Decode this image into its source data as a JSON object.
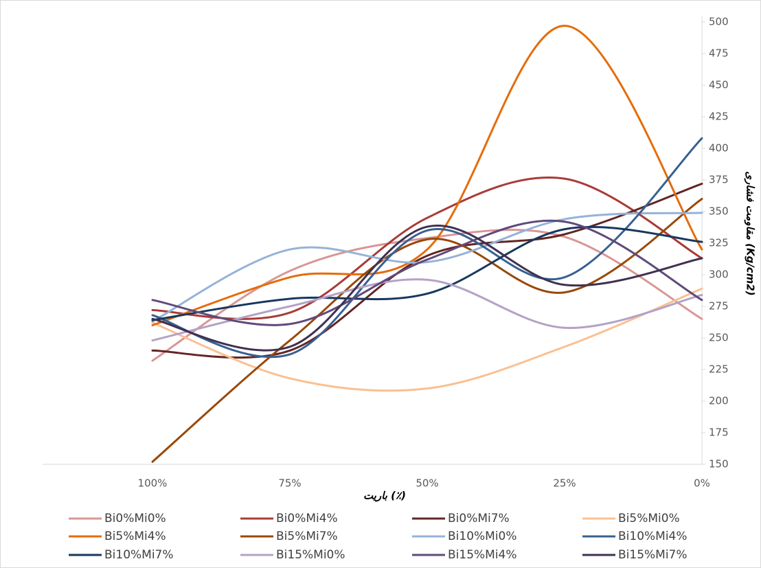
{
  "chart_data": {
    "type": "line",
    "x_label": "باریت (٪)",
    "y_label": "مقاومت فشاری (Kg/cm2)",
    "categories": [
      "100%",
      "75%",
      "50%",
      "25%",
      "0%"
    ],
    "ylim": [
      150,
      500
    ],
    "yticks": [
      150,
      175,
      200,
      225,
      250,
      275,
      300,
      325,
      350,
      375,
      400,
      425,
      450,
      475,
      500
    ],
    "smooth": true,
    "legend": "bottom",
    "series": [
      {
        "name": "Bi0%Mi0%",
        "color": "#d99694",
        "values": [
          232,
          303,
          329,
          330,
          265
        ]
      },
      {
        "name": "Bi0%Mi4%",
        "color": "#a93b37",
        "values": [
          272,
          270,
          345,
          376,
          313
        ]
      },
      {
        "name": "Bi0%Mi7%",
        "color": "#632523",
        "values": [
          240,
          240,
          315,
          332,
          372
        ]
      },
      {
        "name": "Bi5%Mi0%",
        "color": "#fac090",
        "values": [
          262,
          218,
          210,
          243,
          289
        ]
      },
      {
        "name": "Bi5%Mi4%",
        "color": "#e46c0a",
        "values": [
          260,
          298,
          320,
          497,
          320
        ]
      },
      {
        "name": "Bi5%Mi7%",
        "color": "#984807",
        "values": [
          152,
          248,
          328,
          286,
          360
        ]
      },
      {
        "name": "Bi10%Mi0%",
        "color": "#95b3d7",
        "values": [
          263,
          320,
          310,
          344,
          349
        ]
      },
      {
        "name": "Bi10%Mi4%",
        "color": "#376092",
        "values": [
          268,
          237,
          335,
          298,
          408
        ]
      },
      {
        "name": "Bi10%Mi7%",
        "color": "#17375e",
        "values": [
          264,
          281,
          285,
          336,
          326
        ]
      },
      {
        "name": "Bi15%Mi0%",
        "color": "#b3a2c7",
        "values": [
          248,
          275,
          296,
          258,
          284
        ]
      },
      {
        "name": "Bi15%Mi4%",
        "color": "#604a7b",
        "values": [
          280,
          261,
          312,
          342,
          280
        ]
      },
      {
        "name": "Bi15%Mi7%",
        "color": "#3f3151",
        "values": [
          265,
          243,
          338,
          292,
          313
        ]
      }
    ]
  }
}
